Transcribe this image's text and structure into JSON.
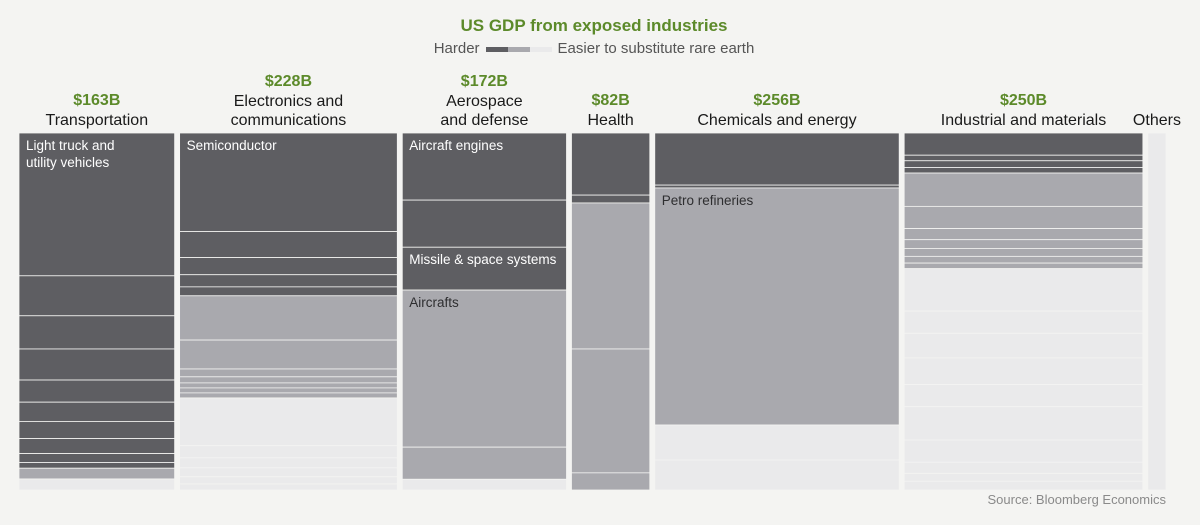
{
  "title": "US GDP from exposed industries",
  "legend": {
    "harder_label": "Harder",
    "easier_label": "Easier to substitute rare earth",
    "colors": {
      "hard": "#5e5e62",
      "medium": "#a9a9ae",
      "easy": "#eaeaeb"
    }
  },
  "source": "Source: Bloomberg Economics",
  "chart_data": {
    "type": "marimekko",
    "title": "US GDP from exposed industries",
    "value_unit": "USD billions",
    "segment_fill_order": [
      "hard",
      "medium",
      "easy"
    ],
    "categories": [
      {
        "name_lines": [
          "Transportation"
        ],
        "value_label": "$163B",
        "value": 163,
        "segments": [
          {
            "share": 0.4,
            "level": "hard",
            "label": "Light truck and utility vehicles",
            "label_lines": [
              "Light truck and",
              "utility vehicles"
            ]
          },
          {
            "share": 0.112,
            "level": "hard"
          },
          {
            "share": 0.093,
            "level": "hard"
          },
          {
            "share": 0.087,
            "level": "hard"
          },
          {
            "share": 0.062,
            "level": "hard"
          },
          {
            "share": 0.054,
            "level": "hard"
          },
          {
            "share": 0.048,
            "level": "hard"
          },
          {
            "share": 0.042,
            "level": "hard"
          },
          {
            "share": 0.025,
            "level": "hard"
          },
          {
            "share": 0.016,
            "level": "hard"
          },
          {
            "share": 0.03,
            "level": "medium"
          },
          {
            "share": 0.031,
            "level": "easy"
          }
        ]
      },
      {
        "name_lines": [
          "Electronics and",
          "communications"
        ],
        "value_label": "$228B",
        "value": 228,
        "segments": [
          {
            "share": 0.276,
            "level": "hard",
            "label": "Semiconductor",
            "label_lines": [
              "Semiconductor"
            ]
          },
          {
            "share": 0.073,
            "level": "hard"
          },
          {
            "share": 0.048,
            "level": "hard"
          },
          {
            "share": 0.034,
            "level": "hard"
          },
          {
            "share": 0.025,
            "level": "hard"
          },
          {
            "share": 0.124,
            "level": "medium"
          },
          {
            "share": 0.081,
            "level": "medium"
          },
          {
            "share": 0.022,
            "level": "medium"
          },
          {
            "share": 0.017,
            "level": "medium"
          },
          {
            "share": 0.014,
            "level": "medium"
          },
          {
            "share": 0.014,
            "level": "medium"
          },
          {
            "share": 0.014,
            "level": "medium"
          },
          {
            "share": 0.134,
            "level": "easy"
          },
          {
            "share": 0.034,
            "level": "easy"
          },
          {
            "share": 0.028,
            "level": "easy"
          },
          {
            "share": 0.025,
            "level": "easy"
          },
          {
            "share": 0.02,
            "level": "easy"
          },
          {
            "share": 0.017,
            "level": "easy"
          }
        ]
      },
      {
        "name_lines": [
          "Aerospace",
          "and defense"
        ],
        "value_label": "$172B",
        "value": 172,
        "segments": [
          {
            "share": 0.188,
            "level": "hard",
            "label": "Aircraft engines",
            "label_lines": [
              "Aircraft engines"
            ]
          },
          {
            "share": 0.132,
            "level": "hard"
          },
          {
            "share": 0.12,
            "level": "hard",
            "label": "Missile & space systems",
            "label_lines": [
              "Missile & space systems"
            ]
          },
          {
            "share": 0.44,
            "level": "medium",
            "label": "Aircrafts",
            "label_lines": [
              "Aircrafts"
            ]
          },
          {
            "share": 0.09,
            "level": "medium"
          },
          {
            "share": 0.03,
            "level": "easy"
          }
        ]
      },
      {
        "name_lines": [
          "Health"
        ],
        "value_label": "$82B",
        "value": 82,
        "segments": [
          {
            "share": 0.174,
            "level": "hard"
          },
          {
            "share": 0.022,
            "level": "hard"
          },
          {
            "share": 0.409,
            "level": "medium"
          },
          {
            "share": 0.347,
            "level": "medium"
          },
          {
            "share": 0.048,
            "level": "medium"
          }
        ]
      },
      {
        "name_lines": [
          "Chemicals and energy"
        ],
        "value_label": "$256B",
        "value": 256,
        "segments": [
          {
            "share": 0.146,
            "level": "hard"
          },
          {
            "share": 0.008,
            "level": "hard"
          },
          {
            "share": 0.664,
            "level": "medium",
            "label": "Petro refineries",
            "label_lines": [
              "Petro refineries"
            ]
          },
          {
            "share": 0.098,
            "level": "easy"
          },
          {
            "share": 0.084,
            "level": "easy"
          }
        ]
      },
      {
        "name_lines": [
          "Industrial and materials"
        ],
        "value_label": "$250B",
        "value": 250,
        "segments": [
          {
            "share": 0.056,
            "level": "hard"
          },
          {
            "share": 0.014,
            "level": "hard"
          },
          {
            "share": 0.017,
            "level": "hard"
          },
          {
            "share": 0.014,
            "level": "hard"
          },
          {
            "share": 0.084,
            "level": "medium"
          },
          {
            "share": 0.056,
            "level": "medium"
          },
          {
            "share": 0.028,
            "level": "medium"
          },
          {
            "share": 0.022,
            "level": "medium"
          },
          {
            "share": 0.02,
            "level": "medium"
          },
          {
            "share": 0.017,
            "level": "medium"
          },
          {
            "share": 0.014,
            "level": "medium"
          },
          {
            "share": 0.107,
            "level": "easy"
          },
          {
            "share": 0.056,
            "level": "easy"
          },
          {
            "share": 0.062,
            "level": "easy"
          },
          {
            "share": 0.067,
            "level": "easy"
          },
          {
            "share": 0.056,
            "level": "easy"
          },
          {
            "share": 0.084,
            "level": "easy"
          },
          {
            "share": 0.056,
            "level": "easy"
          },
          {
            "share": 0.028,
            "level": "easy"
          },
          {
            "share": 0.02,
            "level": "easy"
          },
          {
            "share": 0.022,
            "level": "easy"
          }
        ]
      },
      {
        "name_lines": [
          "Others"
        ],
        "value_label": "",
        "value": 19,
        "segments": [
          {
            "share": 1.0,
            "level": "easy"
          }
        ]
      }
    ]
  }
}
